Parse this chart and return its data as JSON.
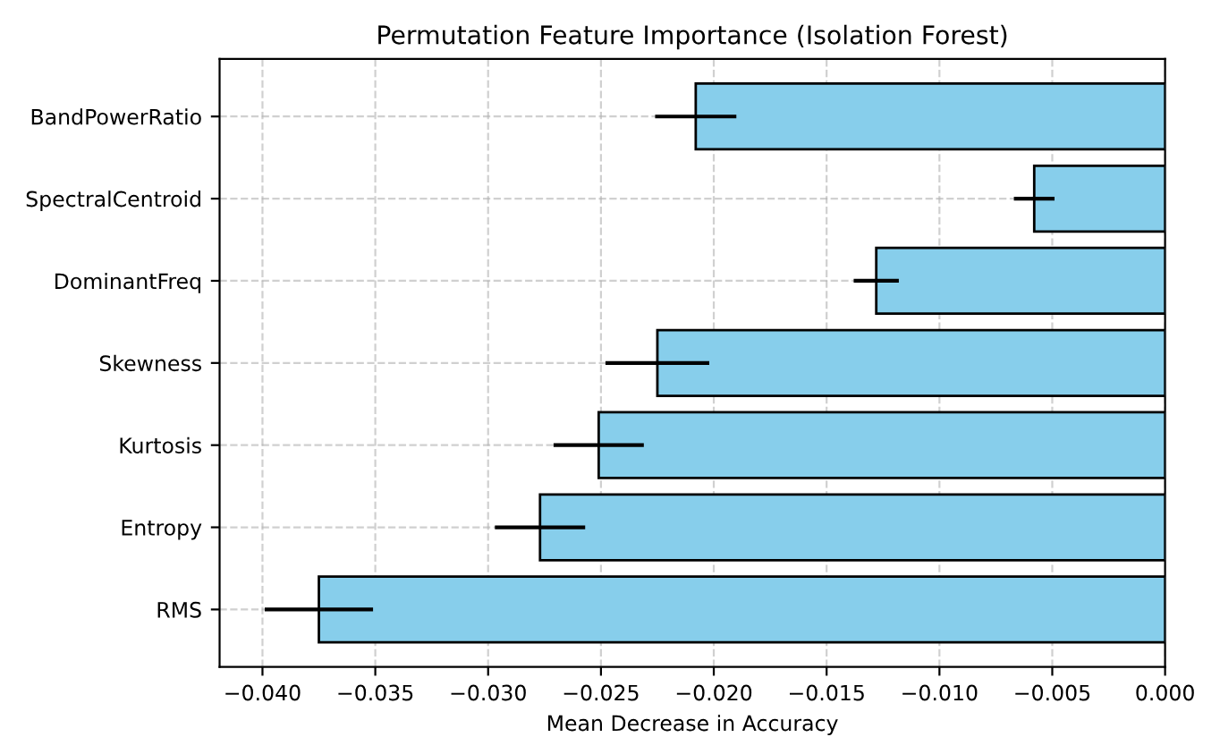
{
  "chart_data": {
    "type": "bar",
    "orientation": "horizontal",
    "title": "Permutation Feature Importance (Isolation Forest)",
    "xlabel": "Mean Decrease in Accuracy",
    "categories": [
      "BandPowerRatio",
      "SpectralCentroid",
      "DominantFreq",
      "Skewness",
      "Kurtosis",
      "Entropy",
      "RMS"
    ],
    "values": [
      -0.0208,
      -0.0058,
      -0.0128,
      -0.0225,
      -0.0251,
      -0.0277,
      -0.0375
    ],
    "errors": [
      0.0018,
      0.0009,
      0.001,
      0.0023,
      0.002,
      0.002,
      0.0024
    ],
    "color": "#87ceeb",
    "xlim": [
      -0.0419,
      0.0
    ],
    "xticks": [
      {
        "value": -0.04,
        "label": "−0.040"
      },
      {
        "value": -0.035,
        "label": "−0.035"
      },
      {
        "value": -0.03,
        "label": "−0.030"
      },
      {
        "value": -0.025,
        "label": "−0.025"
      },
      {
        "value": -0.02,
        "label": "−0.020"
      },
      {
        "value": -0.015,
        "label": "−0.015"
      },
      {
        "value": -0.01,
        "label": "−0.010"
      },
      {
        "value": -0.005,
        "label": "−0.005"
      },
      {
        "value": 0.0,
        "label": "0.000"
      }
    ],
    "grid": true
  }
}
